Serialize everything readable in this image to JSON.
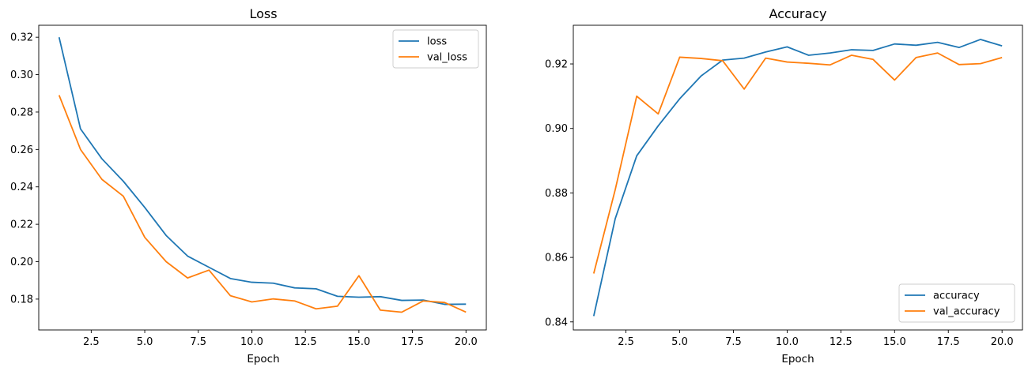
{
  "figure": {
    "panels": [
      {
        "title": "Loss",
        "xlabel": "Epoch"
      },
      {
        "title": "Accuracy",
        "xlabel": "Epoch"
      }
    ]
  },
  "chart_data": [
    {
      "type": "line",
      "title": "Loss",
      "xlabel": "Epoch",
      "ylabel": "",
      "xlim": [
        0.05,
        20.95
      ],
      "ylim": [
        0.1635,
        0.3264
      ],
      "xticks": [
        2.5,
        5.0,
        7.5,
        10.0,
        12.5,
        15.0,
        17.5,
        20.0
      ],
      "xtick_labels": [
        "2.5",
        "5.0",
        "7.5",
        "10.0",
        "12.5",
        "15.0",
        "17.5",
        "20.0"
      ],
      "yticks": [
        0.18,
        0.2,
        0.22,
        0.24,
        0.26,
        0.28,
        0.3,
        0.32
      ],
      "ytick_labels": [
        "0.18",
        "0.20",
        "0.22",
        "0.24",
        "0.26",
        "0.28",
        "0.30",
        "0.32"
      ],
      "grid": false,
      "legend_position": "top-right",
      "x": [
        1,
        2,
        3,
        4,
        5,
        6,
        7,
        8,
        9,
        10,
        11,
        12,
        13,
        14,
        15,
        16,
        17,
        18,
        19,
        20
      ],
      "series": [
        {
          "name": "loss",
          "color": "#1f77b4",
          "values": [
            0.32,
            0.271,
            0.255,
            0.243,
            0.229,
            0.214,
            0.203,
            0.197,
            0.191,
            0.189,
            0.1885,
            0.186,
            0.1855,
            0.1815,
            0.181,
            0.1813,
            0.1793,
            0.1795,
            0.1772,
            0.1773
          ]
        },
        {
          "name": "val_loss",
          "color": "#ff7f0e",
          "values": [
            0.289,
            0.26,
            0.244,
            0.235,
            0.213,
            0.2,
            0.1913,
            0.1955,
            0.1818,
            0.1785,
            0.1801,
            0.179,
            0.1748,
            0.1762,
            0.1925,
            0.1741,
            0.173,
            0.179,
            0.1782,
            0.173
          ]
        }
      ]
    },
    {
      "type": "line",
      "title": "Accuracy",
      "xlabel": "Epoch",
      "ylabel": "",
      "xlim": [
        0.05,
        20.95
      ],
      "ylim": [
        0.8375,
        0.932
      ],
      "xticks": [
        2.5,
        5.0,
        7.5,
        10.0,
        12.5,
        15.0,
        17.5,
        20.0
      ],
      "xtick_labels": [
        "2.5",
        "5.0",
        "7.5",
        "10.0",
        "12.5",
        "15.0",
        "17.5",
        "20.0"
      ],
      "yticks": [
        0.84,
        0.86,
        0.88,
        0.9,
        0.92
      ],
      "ytick_labels": [
        "0.84",
        "0.86",
        "0.88",
        "0.90",
        "0.92"
      ],
      "grid": false,
      "legend_position": "bottom-right",
      "x": [
        1,
        2,
        3,
        4,
        5,
        6,
        7,
        8,
        9,
        10,
        11,
        12,
        13,
        14,
        15,
        16,
        17,
        18,
        19,
        20
      ],
      "series": [
        {
          "name": "accuracy",
          "color": "#1f77b4",
          "values": [
            0.8418,
            0.872,
            0.8915,
            0.9008,
            0.9092,
            0.9163,
            0.9212,
            0.9218,
            0.9237,
            0.9253,
            0.9227,
            0.9234,
            0.9244,
            0.9242,
            0.9262,
            0.9258,
            0.9267,
            0.9251,
            0.9276,
            0.9256
          ]
        },
        {
          "name": "val_accuracy",
          "color": "#ff7f0e",
          "values": [
            0.855,
            0.881,
            0.91,
            0.9045,
            0.9221,
            0.9217,
            0.921,
            0.9122,
            0.9218,
            0.9206,
            0.9202,
            0.9197,
            0.9227,
            0.9214,
            0.915,
            0.922,
            0.9234,
            0.9198,
            0.9201,
            0.922
          ]
        }
      ]
    }
  ]
}
